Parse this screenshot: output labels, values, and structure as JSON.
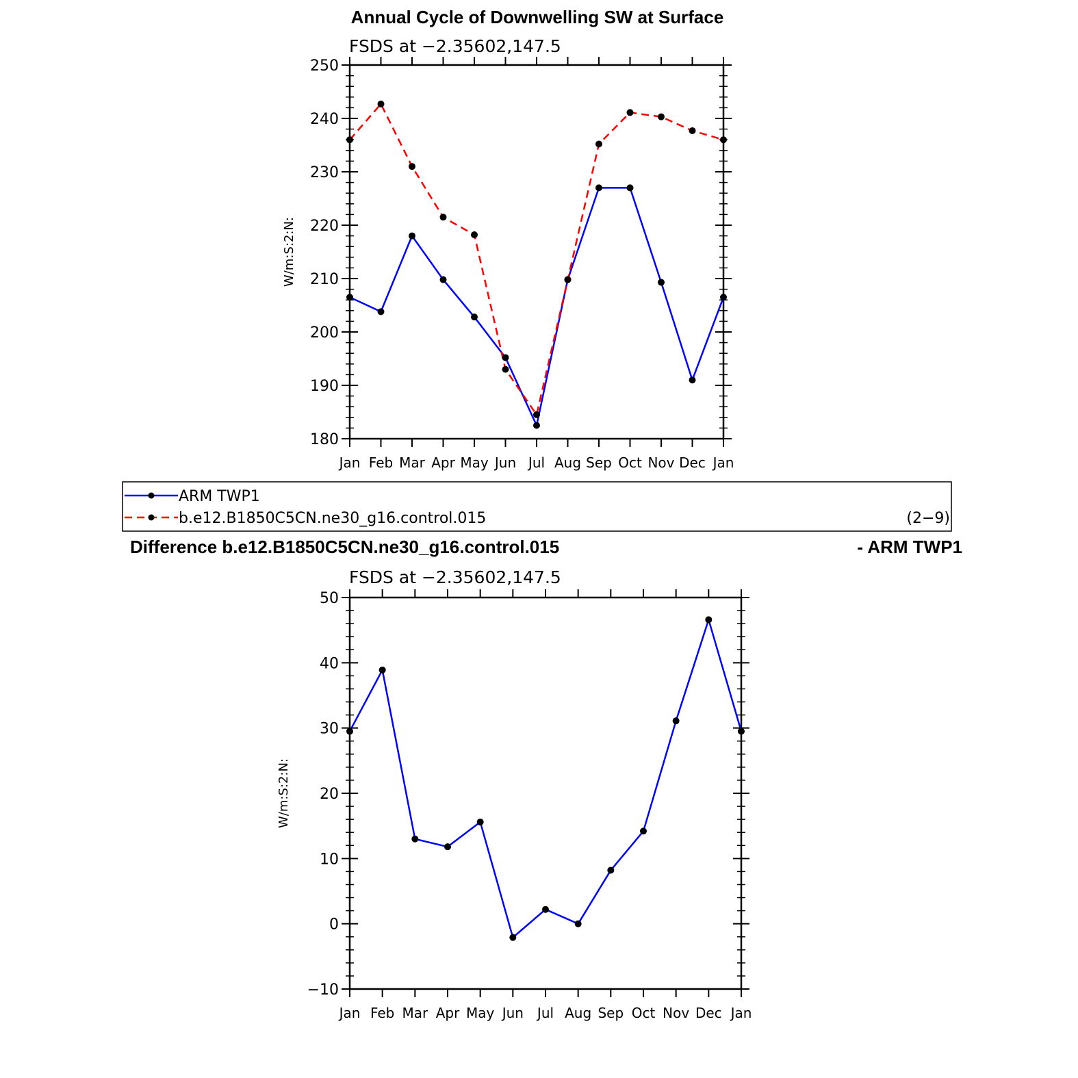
{
  "chart_data": [
    {
      "type": "line",
      "title": "Annual Cycle of Downwelling SW at Surface",
      "subtitle": "FSDS at −2.35602,147.5",
      "ylabel": "W/m:S:2:N:",
      "xlabel": "",
      "categories": [
        "Jan",
        "Feb",
        "Mar",
        "Apr",
        "May",
        "Jun",
        "Jul",
        "Aug",
        "Sep",
        "Oct",
        "Nov",
        "Dec",
        "Jan"
      ],
      "ylim": [
        180,
        250
      ],
      "yticks": [
        180,
        190,
        200,
        210,
        220,
        230,
        240,
        250
      ],
      "ytick_labels": [
        "180",
        "190",
        "200",
        "210",
        "220",
        "230",
        "240",
        "250"
      ],
      "series": [
        {
          "name": "ARM TWP1",
          "color": "#0000ff",
          "dash": "solid",
          "values": [
            206.5,
            203.8,
            218.0,
            209.8,
            202.8,
            195.2,
            182.5,
            209.8,
            227.0,
            227.0,
            209.3,
            191.0,
            206.5
          ]
        },
        {
          "name": "b.e12.B1850C5CN.ne30_g16.control.015",
          "color": "#ff0000",
          "dash": "dashed",
          "values": [
            236.0,
            242.7,
            231.0,
            221.5,
            218.2,
            193.0,
            184.5,
            209.8,
            235.2,
            241.1,
            240.3,
            237.7,
            236.0
          ]
        }
      ]
    },
    {
      "type": "line",
      "title_left": "Difference b.e12.B1850C5CN.ne30_g16.control.015",
      "title_right": "- ARM TWP1",
      "subtitle": "FSDS at −2.35602,147.5",
      "ylabel": "W/m:S:2:N:",
      "xlabel": "",
      "categories": [
        "Jan",
        "Feb",
        "Mar",
        "Apr",
        "May",
        "Jun",
        "Jul",
        "Aug",
        "Sep",
        "Oct",
        "Nov",
        "Dec",
        "Jan"
      ],
      "ylim": [
        -10,
        50
      ],
      "yticks": [
        -10,
        0,
        10,
        20,
        30,
        40,
        50
      ],
      "ytick_labels": [
        "−10",
        "0",
        "10",
        "20",
        "30",
        "40",
        "50"
      ],
      "series": [
        {
          "name": "Difference",
          "color": "#0000ff",
          "dash": "solid",
          "values": [
            29.5,
            38.9,
            13.0,
            11.8,
            15.6,
            -2.1,
            2.2,
            0.0,
            8.2,
            14.2,
            31.1,
            46.6,
            29.5
          ]
        }
      ]
    }
  ],
  "legend": {
    "entries": [
      {
        "label": "ARM TWP1",
        "color": "#0000ff",
        "dash": "solid"
      },
      {
        "label": "b.e12.B1850C5CN.ne30_g16.control.015",
        "color": "#ff0000",
        "dash": "dashed"
      }
    ],
    "note": "(2−9)"
  }
}
